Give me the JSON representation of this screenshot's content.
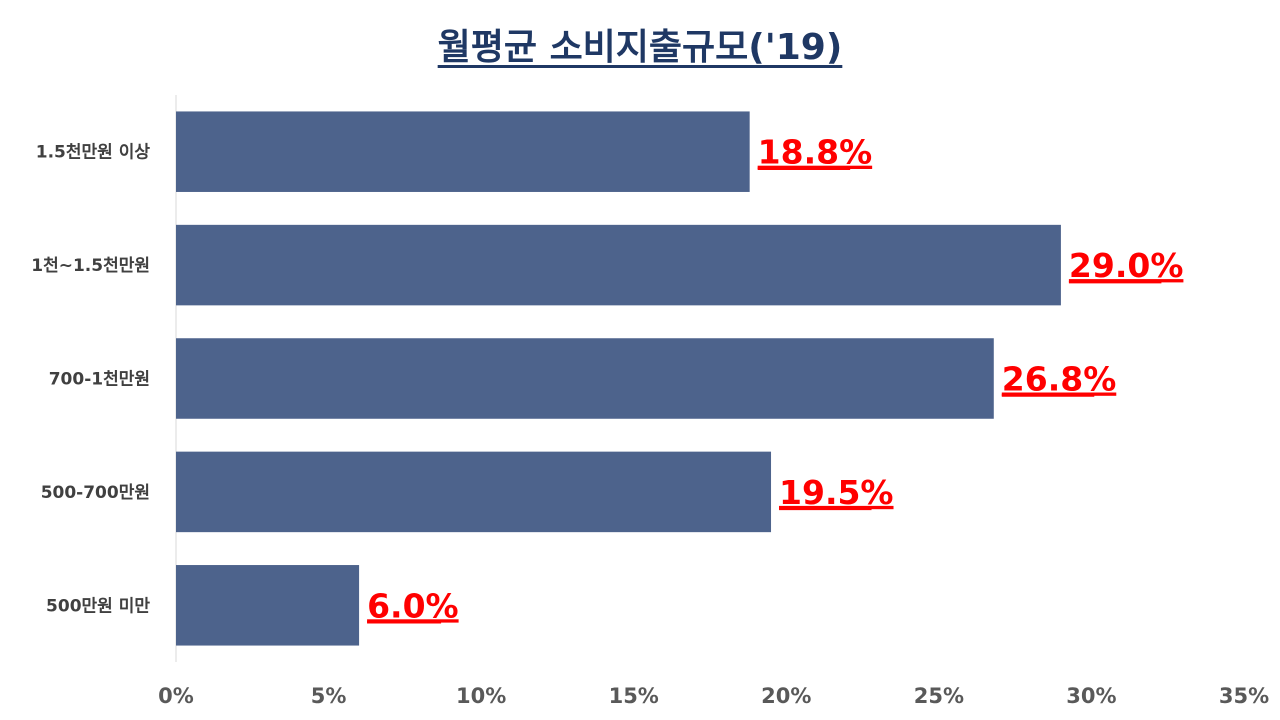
{
  "chart_data": {
    "type": "bar",
    "orientation": "horizontal",
    "title": "월평균 소비지출규모('19)",
    "categories": [
      "1.5천만원 이상",
      "1천~1.5천만원",
      "700-1천만원",
      "500-700만원",
      "500만원 미만"
    ],
    "values": [
      18.8,
      29.0,
      26.8,
      19.5,
      6.0
    ],
    "data_labels": [
      "18.8%",
      "29.0%",
      "26.8%",
      "19.5%",
      "6.0%"
    ],
    "xlim": [
      0,
      35
    ],
    "x_ticks": [
      0,
      5,
      10,
      15,
      20,
      25,
      30,
      35
    ],
    "x_tick_labels": [
      "0%",
      "5%",
      "10%",
      "15%",
      "20%",
      "25%",
      "30%",
      "35%"
    ],
    "xlabel": "",
    "ylabel": "",
    "grid": false,
    "legend": "none",
    "bar_color": "#4d638c",
    "data_label_color": "#ff0000",
    "title_color": "#1f3864"
  }
}
